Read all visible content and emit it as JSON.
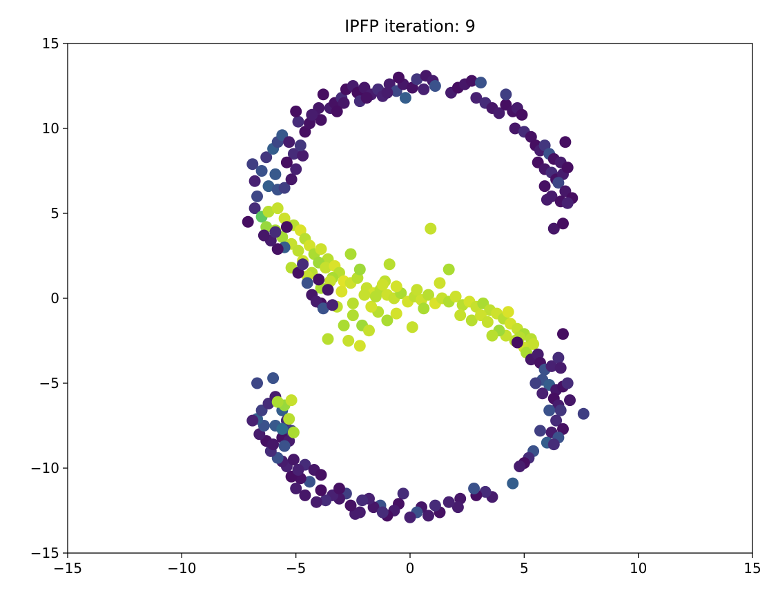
{
  "chart_data": {
    "type": "scatter",
    "title": "IPFP iteration: 9",
    "xlabel": "",
    "ylabel": "",
    "xlim": [
      -15,
      15
    ],
    "ylim": [
      -15,
      15
    ],
    "xticks": [
      -15,
      -10,
      -5,
      0,
      5,
      10,
      15
    ],
    "yticks": [
      -15,
      -10,
      -5,
      0,
      5,
      10,
      15
    ],
    "xtick_labels": [
      "−15",
      "−10",
      "−5",
      "0",
      "5",
      "10",
      "15"
    ],
    "ytick_labels": [
      "−15",
      "−10",
      "−5",
      "0",
      "5",
      "10",
      "15"
    ],
    "grid": false,
    "legend": "none",
    "colormap": "viridis",
    "colors": {
      "low": "#440154",
      "mid_low": "#3b528b",
      "high": "#dce319",
      "top": "#fde725"
    },
    "points": [
      [
        -7.1,
        4.5,
        0.05
      ],
      [
        -6.8,
        5.3,
        0.15
      ],
      [
        -6.7,
        6.0,
        0.22
      ],
      [
        -6.8,
        6.9,
        0.12
      ],
      [
        -6.9,
        7.9,
        0.2
      ],
      [
        -6.5,
        7.5,
        0.25
      ],
      [
        -6.3,
        8.3,
        0.18
      ],
      [
        -6.0,
        8.8,
        0.3
      ],
      [
        -5.8,
        9.2,
        0.22
      ],
      [
        -5.6,
        9.6,
        0.28
      ],
      [
        -5.3,
        9.2,
        0.1
      ],
      [
        -5.1,
        8.5,
        0.15
      ],
      [
        -5.4,
        8.0,
        0.05
      ],
      [
        -5.9,
        7.3,
        0.28
      ],
      [
        -6.2,
        6.6,
        0.3
      ],
      [
        -5.8,
        6.4,
        0.25
      ],
      [
        -5.5,
        6.5,
        0.2
      ],
      [
        -5.2,
        7.0,
        0.08
      ],
      [
        -5.0,
        7.6,
        0.12
      ],
      [
        -4.7,
        8.4,
        0.1
      ],
      [
        -4.8,
        9.0,
        0.18
      ],
      [
        -4.6,
        9.8,
        0.05
      ],
      [
        -4.4,
        10.3,
        0.06
      ],
      [
        -4.2,
        10.8,
        0.1
      ],
      [
        -4.9,
        10.4,
        0.15
      ],
      [
        -5.0,
        11.0,
        0.05
      ],
      [
        -4.0,
        11.2,
        0.08
      ],
      [
        -3.8,
        12.0,
        0.05
      ],
      [
        -3.5,
        11.2,
        0.1
      ],
      [
        -3.3,
        11.5,
        0.06
      ],
      [
        -3.0,
        11.8,
        0.15
      ],
      [
        -2.8,
        12.3,
        0.05
      ],
      [
        -2.5,
        12.5,
        0.1
      ],
      [
        -2.3,
        12.1,
        0.04
      ],
      [
        -2.0,
        12.4,
        0.08
      ],
      [
        -1.7,
        12.0,
        0.1
      ],
      [
        -1.4,
        12.3,
        0.15
      ],
      [
        -1.2,
        11.9,
        0.12
      ],
      [
        -0.9,
        12.6,
        0.1
      ],
      [
        -0.6,
        12.2,
        0.22
      ],
      [
        -0.3,
        12.6,
        0.08
      ],
      [
        0.1,
        12.4,
        0.06
      ],
      [
        0.3,
        12.9,
        0.18
      ],
      [
        0.6,
        12.3,
        0.12
      ],
      [
        0.7,
        13.1,
        0.08
      ],
      [
        1.0,
        12.8,
        0.1
      ],
      [
        1.1,
        12.5,
        0.25
      ],
      [
        -0.5,
        13.0,
        0.05
      ],
      [
        -2.9,
        11.5,
        0.08
      ],
      [
        -3.2,
        11.0,
        0.05
      ],
      [
        -3.9,
        10.5,
        0.06
      ],
      [
        -4.3,
        10.8,
        0.1
      ],
      [
        -2.2,
        11.6,
        0.15
      ],
      [
        -1.9,
        11.8,
        0.06
      ],
      [
        -1.0,
        12.1,
        0.1
      ],
      [
        -0.2,
        11.8,
        0.3
      ],
      [
        1.8,
        12.1,
        0.1
      ],
      [
        2.1,
        12.4,
        0.05
      ],
      [
        2.4,
        12.6,
        0.08
      ],
      [
        2.7,
        12.8,
        0.06
      ],
      [
        3.1,
        12.7,
        0.25
      ],
      [
        2.9,
        11.8,
        0.12
      ],
      [
        3.3,
        11.5,
        0.15
      ],
      [
        3.6,
        11.2,
        0.08
      ],
      [
        3.9,
        10.9,
        0.1
      ],
      [
        4.2,
        11.4,
        0.05
      ],
      [
        4.2,
        12.0,
        0.2
      ],
      [
        4.5,
        11.0,
        0.06
      ],
      [
        4.7,
        11.2,
        0.1
      ],
      [
        4.9,
        10.8,
        0.05
      ],
      [
        4.6,
        10.0,
        0.08
      ],
      [
        5.0,
        9.8,
        0.15
      ],
      [
        5.3,
        9.5,
        0.06
      ],
      [
        5.5,
        9.0,
        0.05
      ],
      [
        5.7,
        8.7,
        0.1
      ],
      [
        5.9,
        9.0,
        0.18
      ],
      [
        6.1,
        8.5,
        0.25
      ],
      [
        6.3,
        8.2,
        0.06
      ],
      [
        6.6,
        8.0,
        0.1
      ],
      [
        6.8,
        9.2,
        0.05
      ],
      [
        5.6,
        8.0,
        0.05
      ],
      [
        5.9,
        7.6,
        0.08
      ],
      [
        6.2,
        7.4,
        0.15
      ],
      [
        6.4,
        7.0,
        0.06
      ],
      [
        6.7,
        7.3,
        0.1
      ],
      [
        6.9,
        7.7,
        0.05
      ],
      [
        6.5,
        6.8,
        0.22
      ],
      [
        6.8,
        6.3,
        0.08
      ],
      [
        6.2,
        6.0,
        0.1
      ],
      [
        6.6,
        5.7,
        0.06
      ],
      [
        7.1,
        5.9,
        0.05
      ],
      [
        6.9,
        5.6,
        0.12
      ],
      [
        6.3,
        4.1,
        0.08
      ],
      [
        6.7,
        4.4,
        0.05
      ],
      [
        5.9,
        6.6,
        0.06
      ],
      [
        6.0,
        5.8,
        0.1
      ],
      [
        -6.5,
        4.8,
        0.75
      ],
      [
        -6.2,
        5.1,
        0.9
      ],
      [
        -5.8,
        5.3,
        0.92
      ],
      [
        -6.3,
        4.2,
        0.85
      ],
      [
        -5.9,
        4.0,
        0.88
      ],
      [
        -5.5,
        4.7,
        0.93
      ],
      [
        -5.1,
        4.3,
        0.9
      ],
      [
        -4.8,
        4.0,
        0.95
      ],
      [
        -5.6,
        3.6,
        0.87
      ],
      [
        -5.2,
        3.2,
        0.92
      ],
      [
        -4.6,
        3.5,
        0.9
      ],
      [
        -4.4,
        3.1,
        0.94
      ],
      [
        -4.9,
        2.8,
        0.91
      ],
      [
        -4.2,
        2.6,
        0.88
      ],
      [
        -3.9,
        2.9,
        0.93
      ],
      [
        -3.6,
        2.3,
        0.9
      ],
      [
        -4.0,
        2.1,
        0.86
      ],
      [
        -3.7,
        1.8,
        0.92
      ],
      [
        -3.3,
        1.9,
        0.95
      ],
      [
        -3.1,
        1.5,
        0.9
      ],
      [
        -3.4,
        1.2,
        0.88
      ],
      [
        -2.9,
        1.0,
        0.96
      ],
      [
        -2.6,
        0.9,
        0.93
      ],
      [
        -2.3,
        1.2,
        0.9
      ],
      [
        -2.6,
        2.6,
        0.88
      ],
      [
        -2.2,
        1.7,
        0.86
      ],
      [
        -1.9,
        0.6,
        0.92
      ],
      [
        -1.6,
        0.3,
        0.94
      ],
      [
        -1.3,
        0.5,
        0.9
      ],
      [
        -1.0,
        0.2,
        0.93
      ],
      [
        -0.7,
        0.0,
        0.92
      ],
      [
        -0.4,
        0.3,
        0.88
      ],
      [
        -0.1,
        -0.2,
        0.94
      ],
      [
        0.2,
        0.1,
        0.91
      ],
      [
        0.5,
        -0.1,
        0.93
      ],
      [
        0.8,
        0.2,
        0.9
      ],
      [
        1.1,
        -0.3,
        0.95
      ],
      [
        1.4,
        0.0,
        0.92
      ],
      [
        1.7,
        -0.2,
        0.89
      ],
      [
        2.0,
        0.1,
        0.93
      ],
      [
        2.3,
        -0.4,
        0.9
      ],
      [
        2.6,
        -0.2,
        0.94
      ],
      [
        2.9,
        -0.5,
        0.92
      ],
      [
        3.2,
        -0.3,
        0.88
      ],
      [
        3.5,
        -0.7,
        0.91
      ],
      [
        3.8,
        -0.9,
        0.93
      ],
      [
        4.1,
        -1.2,
        0.9
      ],
      [
        4.4,
        -1.5,
        0.94
      ],
      [
        4.7,
        -1.8,
        0.92
      ],
      [
        5.0,
        -2.1,
        0.88
      ],
      [
        5.3,
        -2.4,
        0.9
      ],
      [
        5.0,
        -2.9,
        0.93
      ],
      [
        4.6,
        -2.5,
        0.9
      ],
      [
        4.2,
        -2.2,
        0.92
      ],
      [
        3.9,
        -1.9,
        0.86
      ],
      [
        3.6,
        -2.2,
        0.9
      ],
      [
        -1.1,
        1.0,
        0.91
      ],
      [
        -0.6,
        0.7,
        0.94
      ],
      [
        0.3,
        0.5,
        0.92
      ],
      [
        1.3,
        0.9,
        0.93
      ],
      [
        1.7,
        1.7,
        0.88
      ],
      [
        -0.9,
        2.0,
        0.9
      ],
      [
        0.9,
        4.1,
        0.92
      ],
      [
        -2.9,
        -1.6,
        0.88
      ],
      [
        -3.6,
        -2.4,
        0.9
      ],
      [
        -2.7,
        -2.5,
        0.92
      ],
      [
        -2.2,
        -2.8,
        0.94
      ],
      [
        -2.5,
        -1.0,
        0.89
      ],
      [
        -2.1,
        -1.6,
        0.86
      ],
      [
        -1.8,
        -1.9,
        0.92
      ],
      [
        -1.4,
        -0.8,
        0.9
      ],
      [
        -1.0,
        -1.3,
        0.88
      ],
      [
        -0.6,
        -0.9,
        0.94
      ],
      [
        0.1,
        -1.7,
        0.92
      ],
      [
        -3.2,
        -0.5,
        0.91
      ],
      [
        -1.2,
        0.8,
        0.93
      ],
      [
        -4.3,
        1.5,
        0.9
      ],
      [
        -3.9,
        0.6,
        0.88
      ],
      [
        -3.5,
        1.0,
        0.92
      ],
      [
        -3.0,
        0.4,
        0.95
      ],
      [
        -5.2,
        1.8,
        0.9
      ],
      [
        -4.7,
        2.2,
        0.93
      ],
      [
        -4.5,
        1.3,
        0.92
      ],
      [
        -2.5,
        -0.3,
        0.9
      ],
      [
        -2.0,
        0.2,
        0.92
      ],
      [
        -1.7,
        -0.5,
        0.94
      ],
      [
        -1.5,
        0.1,
        0.9
      ],
      [
        0.6,
        -0.6,
        0.88
      ],
      [
        2.2,
        -1.0,
        0.92
      ],
      [
        2.7,
        -1.3,
        0.9
      ],
      [
        3.1,
        -1.0,
        0.93
      ],
      [
        3.4,
        -1.4,
        0.92
      ],
      [
        4.3,
        -0.8,
        0.95
      ],
      [
        4.8,
        -2.3,
        0.9
      ],
      [
        5.1,
        -3.2,
        0.88
      ],
      [
        5.4,
        -2.7,
        0.92
      ],
      [
        -5.5,
        3.0,
        0.3
      ],
      [
        -5.8,
        2.9,
        0.06
      ],
      [
        -6.1,
        3.4,
        0.1
      ],
      [
        -5.9,
        3.9,
        0.15
      ],
      [
        -6.4,
        3.7,
        0.08
      ],
      [
        -5.4,
        4.2,
        0.05
      ],
      [
        -4.9,
        1.5,
        0.06
      ],
      [
        -4.5,
        0.9,
        0.25
      ],
      [
        -4.3,
        0.2,
        0.08
      ],
      [
        -3.9,
        -0.3,
        0.05
      ],
      [
        -4.1,
        -0.2,
        0.1
      ],
      [
        -3.8,
        -0.6,
        0.25
      ],
      [
        -3.4,
        -0.4,
        0.12
      ],
      [
        -4.7,
        2.0,
        0.15
      ],
      [
        -4.0,
        1.1,
        0.06
      ],
      [
        -3.6,
        0.5,
        0.08
      ],
      [
        4.7,
        -2.6,
        0.05
      ],
      [
        5.3,
        -3.6,
        0.08
      ],
      [
        5.6,
        -3.3,
        0.1
      ],
      [
        5.7,
        -3.8,
        0.06
      ],
      [
        5.9,
        -4.2,
        0.25
      ],
      [
        6.2,
        -4.0,
        0.12
      ],
      [
        6.5,
        -3.5,
        0.15
      ],
      [
        6.7,
        -2.1,
        0.05
      ],
      [
        6.6,
        -4.1,
        0.1
      ],
      [
        5.8,
        -4.8,
        0.25
      ],
      [
        6.1,
        -5.1,
        0.3
      ],
      [
        6.4,
        -5.4,
        0.08
      ],
      [
        6.7,
        -5.2,
        0.06
      ],
      [
        6.9,
        -5.0,
        0.15
      ],
      [
        5.5,
        -5.0,
        0.2
      ],
      [
        5.8,
        -5.6,
        0.12
      ],
      [
        6.3,
        -5.9,
        0.05
      ],
      [
        6.5,
        -6.3,
        0.1
      ],
      [
        6.1,
        -6.6,
        0.25
      ],
      [
        6.6,
        -6.6,
        0.18
      ],
      [
        7.0,
        -6.0,
        0.08
      ],
      [
        7.6,
        -6.8,
        0.2
      ],
      [
        6.4,
        -7.2,
        0.15
      ],
      [
        6.7,
        -7.7,
        0.06
      ],
      [
        6.2,
        -7.9,
        0.1
      ],
      [
        6.5,
        -8.2,
        0.25
      ],
      [
        6.0,
        -8.5,
        0.3
      ],
      [
        6.3,
        -8.6,
        0.15
      ],
      [
        5.7,
        -7.8,
        0.2
      ],
      [
        5.4,
        -9.0,
        0.25
      ],
      [
        5.2,
        -9.4,
        0.15
      ],
      [
        5.0,
        -9.7,
        0.05
      ],
      [
        4.8,
        -9.9,
        0.1
      ],
      [
        4.5,
        -10.9,
        0.3
      ],
      [
        3.6,
        -11.7,
        0.1
      ],
      [
        3.3,
        -11.4,
        0.15
      ],
      [
        2.9,
        -11.6,
        0.05
      ],
      [
        2.8,
        -11.2,
        0.25
      ],
      [
        2.2,
        -11.8,
        0.08
      ],
      [
        2.1,
        -12.3,
        0.1
      ],
      [
        1.7,
        -12.0,
        0.12
      ],
      [
        1.3,
        -12.6,
        0.06
      ],
      [
        1.1,
        -12.2,
        0.15
      ],
      [
        0.8,
        -12.8,
        0.1
      ],
      [
        0.5,
        -12.3,
        0.08
      ],
      [
        0.3,
        -12.6,
        0.25
      ],
      [
        0.0,
        -12.9,
        0.12
      ],
      [
        -0.3,
        -11.5,
        0.15
      ],
      [
        -0.5,
        -12.1,
        0.06
      ],
      [
        -0.7,
        -12.5,
        0.1
      ],
      [
        -1.0,
        -12.8,
        0.05
      ],
      [
        -1.3,
        -12.2,
        0.25
      ],
      [
        -1.6,
        -12.3,
        0.08
      ],
      [
        -1.8,
        -11.8,
        0.12
      ],
      [
        -2.1,
        -11.9,
        0.15
      ],
      [
        -2.4,
        -12.7,
        0.1
      ],
      [
        -2.6,
        -12.2,
        0.06
      ],
      [
        -2.8,
        -11.5,
        0.2
      ],
      [
        -3.1,
        -11.8,
        0.08
      ],
      [
        -3.4,
        -11.6,
        0.12
      ],
      [
        -3.7,
        -11.9,
        0.15
      ],
      [
        -3.9,
        -11.3,
        0.05
      ],
      [
        -4.1,
        -12.0,
        0.1
      ],
      [
        -4.4,
        -10.8,
        0.25
      ],
      [
        -4.6,
        -11.6,
        0.08
      ],
      [
        -4.8,
        -10.6,
        0.06
      ],
      [
        -5.0,
        -11.2,
        0.1
      ],
      [
        -5.2,
        -10.5,
        0.05
      ],
      [
        -5.4,
        -9.9,
        0.12
      ],
      [
        -4.6,
        -9.8,
        0.15
      ],
      [
        -4.2,
        -10.1,
        0.08
      ],
      [
        -3.9,
        -10.4,
        0.06
      ],
      [
        -5.6,
        -9.6,
        0.1
      ],
      [
        -5.8,
        -9.4,
        0.25
      ],
      [
        -6.1,
        -9.0,
        0.15
      ],
      [
        -6.3,
        -8.4,
        0.06
      ],
      [
        -6.6,
        -8.0,
        0.1
      ],
      [
        -6.4,
        -7.5,
        0.25
      ],
      [
        -6.7,
        -7.1,
        0.3
      ],
      [
        -6.9,
        -7.2,
        0.12
      ],
      [
        -6.5,
        -6.6,
        0.2
      ],
      [
        -6.2,
        -6.2,
        0.15
      ],
      [
        -5.9,
        -5.8,
        0.1
      ],
      [
        -6.0,
        -4.7,
        0.25
      ],
      [
        -6.7,
        -5.0,
        0.22
      ],
      [
        -5.6,
        -6.6,
        0.3
      ],
      [
        -5.4,
        -7.2,
        0.15
      ],
      [
        -5.2,
        -7.8,
        0.2
      ],
      [
        -5.6,
        -8.2,
        0.06
      ],
      [
        -5.9,
        -7.5,
        0.28
      ],
      [
        -6.0,
        -8.6,
        0.08
      ],
      [
        -5.3,
        -8.4,
        0.1
      ],
      [
        -5.5,
        -6.3,
        0.85
      ],
      [
        -5.2,
        -6.0,
        0.92
      ],
      [
        -5.8,
        -6.1,
        0.88
      ],
      [
        -5.3,
        -7.1,
        0.9
      ],
      [
        -5.1,
        -7.9,
        0.88
      ],
      [
        -5.6,
        -7.7,
        0.35
      ],
      [
        -5.5,
        -8.7,
        0.25
      ],
      [
        -5.1,
        -9.5,
        0.08
      ],
      [
        -4.9,
        -10.1,
        0.12
      ],
      [
        -3.1,
        -11.2,
        0.06
      ],
      [
        -2.2,
        -12.6,
        0.1
      ],
      [
        -1.2,
        -12.6,
        0.15
      ]
    ]
  }
}
